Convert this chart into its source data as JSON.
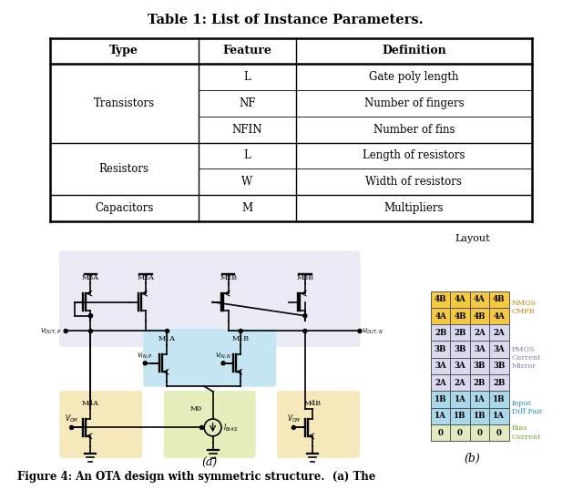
{
  "title": "Table 1: List of Instance Parameters.",
  "table_header": [
    "Type",
    "Feature",
    "Definition"
  ],
  "table_rows": [
    [
      "Transistors",
      "L",
      "Gate poly length"
    ],
    [
      "Transistors",
      "NF",
      "Number of fingers"
    ],
    [
      "Transistors",
      "NFIN",
      "Number of fins"
    ],
    [
      "Resistors",
      "L",
      "Length of resistors"
    ],
    [
      "Resistors",
      "W",
      "Width of resistors"
    ],
    [
      "Capacitors",
      "M",
      "Multipliers"
    ]
  ],
  "layout_grid": [
    [
      "4B",
      "4A",
      "4A",
      "4B"
    ],
    [
      "4A",
      "4B",
      "4B",
      "4A"
    ],
    [
      "2B",
      "2B",
      "2A",
      "2A"
    ],
    [
      "3B",
      "3B",
      "3A",
      "3A"
    ],
    [
      "3A",
      "3A",
      "3B",
      "3B"
    ],
    [
      "2A",
      "2A",
      "2B",
      "2B"
    ],
    [
      "1B",
      "1A",
      "1A",
      "1B"
    ],
    [
      "1A",
      "1B",
      "1B",
      "1A"
    ],
    [
      "0",
      "0",
      "0",
      "0"
    ]
  ],
  "row_colors": {
    "0": "#F5C842",
    "1": "#F5C842",
    "2": "#D8D8EE",
    "3": "#D8D8EE",
    "4": "#D8D8EE",
    "5": "#D8D8EE",
    "6": "#A8D8EA",
    "7": "#A8D8EA",
    "8": "#E0EAC0"
  },
  "layout_labels": [
    {
      "text": "NMOS\nCMFB",
      "color": "#C88000",
      "r0": 0,
      "r1": 1
    },
    {
      "text": "PMOS\nCurrent\nMirror",
      "color": "#8080B0",
      "r0": 2,
      "r1": 5
    },
    {
      "text": "Input\nDiff Pair",
      "color": "#2090B0",
      "r0": 6,
      "r1": 7
    },
    {
      "text": "Bias\nCurrent",
      "color": "#70A030",
      "r0": 8,
      "r1": 8
    }
  ],
  "bg_pmos": "#EAEAF5",
  "bg_diff": "#C5E5F2",
  "bg_bias_yellow": "#F5E8BB",
  "bg_bias_green": "#E5EEBB",
  "figure_caption": "Figure 4: An OTA design with symmetric structure.  (a) The"
}
